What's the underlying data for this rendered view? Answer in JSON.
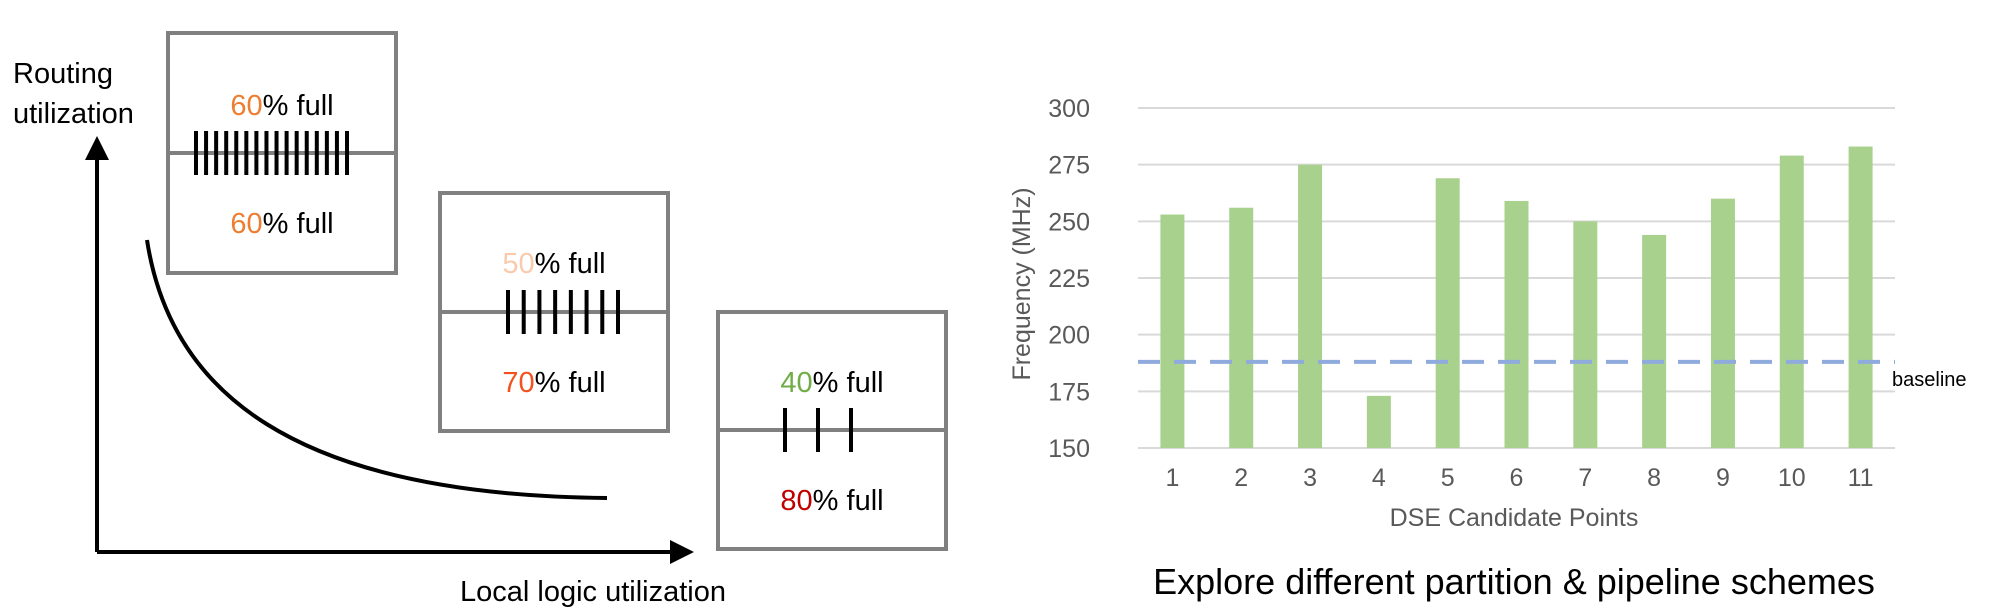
{
  "left_diagram": {
    "y_axis_label_line1": "Routing",
    "y_axis_label_line2": "utilization",
    "x_axis_label": "Local logic utilization",
    "boxes": [
      {
        "top_value": "60",
        "top_suffix": "% full",
        "top_color": "#ED7D31",
        "bottom_value": "60",
        "bottom_suffix": "% full",
        "bottom_color": "#ED7D31",
        "wire_count": 16
      },
      {
        "top_value": "50",
        "top_suffix": "% full",
        "top_color": "#F8CBAD",
        "bottom_value": "70",
        "bottom_suffix": "% full",
        "bottom_color": "#F4511E",
        "wire_count": 8
      },
      {
        "top_value": "40",
        "top_suffix": "% full",
        "top_color": "#70AD47",
        "bottom_value": "80",
        "bottom_suffix": "% full",
        "bottom_color": "#C00000",
        "wire_count": 3
      }
    ],
    "box_border_color": "#808080"
  },
  "chart_data": {
    "type": "bar",
    "categories": [
      "1",
      "2",
      "3",
      "4",
      "5",
      "6",
      "7",
      "8",
      "9",
      "10",
      "11"
    ],
    "values": [
      253,
      256,
      275,
      173,
      269,
      259,
      250,
      244,
      260,
      279,
      283
    ],
    "title": "Explore different partition & pipeline schemes",
    "xlabel": "DSE Candidate Points",
    "ylabel": "Frequency (MHz)",
    "ylim": [
      150,
      300
    ],
    "yticks": [
      150,
      175,
      200,
      225,
      250,
      275,
      300
    ],
    "grid": true,
    "bar_color": "#A9D18E",
    "reference_line": {
      "label": "baseline",
      "value": 188,
      "color": "#8FAADC",
      "style": "dashed"
    }
  }
}
